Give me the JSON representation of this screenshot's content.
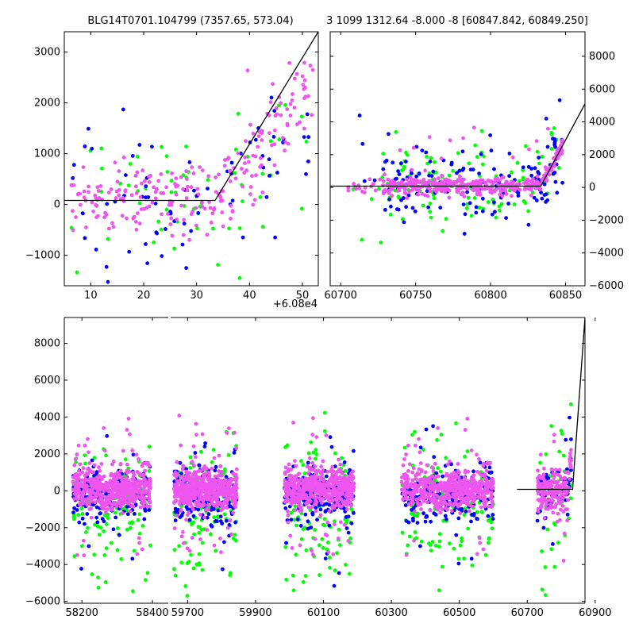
{
  "colors": {
    "green": "#00ff00",
    "blue": "#0000ff",
    "magenta": "#ee55ee",
    "model_line": "#000000"
  },
  "chart_data": [
    {
      "type": "scatter",
      "panel": "top-left",
      "title": "BLG14T0701.104799 (7357.65, 573.04)",
      "xlim": [
        5,
        53
      ],
      "ylim": [
        -1600,
        3400
      ],
      "x_offset_label": "+6.08e4",
      "x_tick_labels": [
        "10",
        "20",
        "30",
        "40",
        "50"
      ],
      "y_tick_labels": [
        "3000",
        "2000",
        "1000",
        "0",
        "−1000"
      ],
      "x_ticks": [
        10,
        20,
        30,
        40,
        50
      ],
      "y_ticks": [
        3000,
        2000,
        1000,
        0,
        -1000
      ],
      "model_line": {
        "x": [
          5,
          33.5,
          53
        ],
        "y": [
          80,
          80,
          3400
        ]
      },
      "series_names": [
        "green",
        "blue",
        "magenta"
      ],
      "series_counts": [
        60,
        75,
        240
      ]
    },
    {
      "type": "scatter",
      "panel": "top-right",
      "title": "3 1099 1312.64 -8.000 -8 [60847.842, 60849.250]",
      "xlim": [
        60693,
        60863
      ],
      "ylim": [
        -6000,
        9500
      ],
      "x_tick_labels": [
        "60700",
        "60750",
        "60800",
        "60850"
      ],
      "y_tick_labels": [
        "8000",
        "6000",
        "4000",
        "2000",
        "0",
        "−2000",
        "−4000",
        "−6000"
      ],
      "x_ticks": [
        60700,
        60750,
        60800,
        60850
      ],
      "y_ticks": [
        8000,
        6000,
        4000,
        2000,
        0,
        -2000,
        -4000,
        -6000
      ],
      "model_line": {
        "x": [
          60693,
          60833.5,
          60863
        ],
        "y": [
          80,
          80,
          5100
        ]
      },
      "series_names": [
        "green",
        "blue",
        "magenta"
      ],
      "series_counts": [
        120,
        150,
        420
      ]
    },
    {
      "type": "scatter",
      "panel": "bottom",
      "title": "",
      "ylim": [
        -6100,
        9400
      ],
      "y_tick_labels": [
        "8000",
        "6000",
        "4000",
        "2000",
        "0",
        "−2000",
        "−4000",
        "−6000"
      ],
      "y_ticks": [
        8000,
        6000,
        4000,
        2000,
        0,
        -2000,
        -4000,
        -6000
      ],
      "x_tick_labels": [
        "58200",
        "58400",
        "59700",
        "59900",
        "60100",
        "60300",
        "60500",
        "60700",
        "60900"
      ],
      "segments": [
        {
          "xlim": [
            58150,
            58445
          ],
          "ticks": [
            58200,
            58400
          ],
          "clusters": [
            [
              58175,
              58395
            ]
          ]
        },
        {
          "xlim": [
            59650,
            60870
          ],
          "ticks": [
            59700,
            59900,
            60100,
            60300,
            60500,
            60700,
            60900
          ],
          "clusters": [
            [
              59660,
              59845
            ],
            [
              59985,
              60190
            ],
            [
              60330,
              60600
            ],
            [
              60730,
              60830
            ]
          ]
        }
      ],
      "model_line": {
        "x": [
          60670,
          60833.5,
          60870
        ],
        "y": [
          80,
          80,
          9400
        ]
      },
      "series_names": [
        "green",
        "blue",
        "magenta"
      ],
      "series_counts_per_cluster": [
        110,
        200,
        520
      ]
    }
  ]
}
